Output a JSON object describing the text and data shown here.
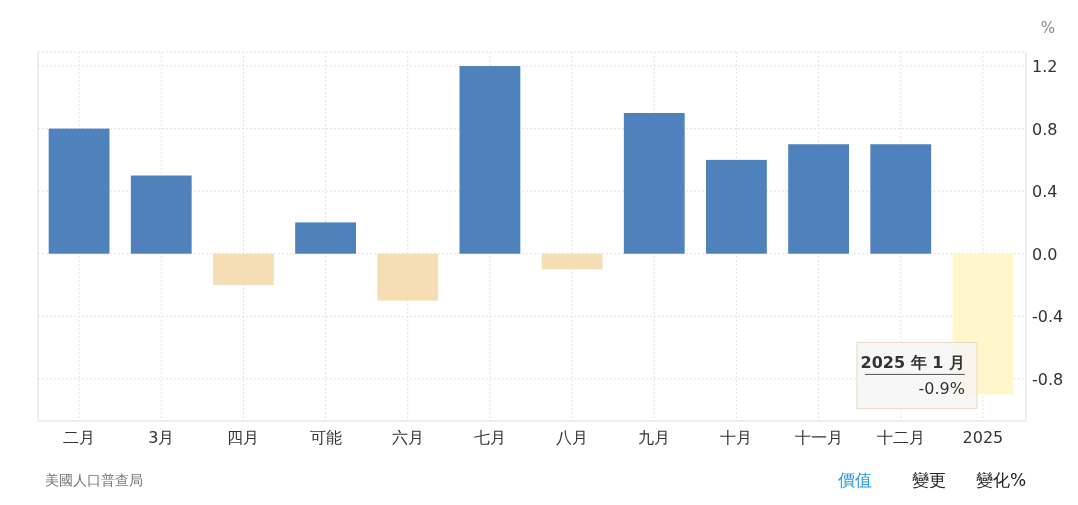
{
  "chart_data": {
    "type": "bar",
    "ylabel": "%",
    "categories": [
      "二月",
      "3月",
      "四月",
      "可能",
      "六月",
      "七月",
      "八月",
      "九月",
      "十月",
      "十一月",
      "十二月",
      "2025"
    ],
    "values": [
      0.8,
      0.5,
      -0.2,
      0.2,
      -0.3,
      1.2,
      -0.1,
      0.9,
      0.6,
      0.7,
      0.7,
      -0.9
    ],
    "colors": [
      "#4f81bd",
      "#4f81bd",
      "#f5deb3",
      "#4f81bd",
      "#f5deb3",
      "#4f81bd",
      "#f5deb3",
      "#4f81bd",
      "#4f81bd",
      "#4f81bd",
      "#4f81bd",
      "#fff6cc"
    ],
    "ylim": [
      -1.07,
      1.29
    ],
    "yticks": [
      -0.8,
      -0.4,
      {
        "value": 0,
        "label": "0.0"
      },
      0.4,
      0.8,
      1.2
    ],
    "grid": true,
    "annotations": [
      {
        "text": "2025 年 1 月",
        "x": "2025",
        "y": -0.9
      },
      {
        "text": "-0.9%",
        "x": "2025",
        "y": -0.9
      },
      "美國人口普查局",
      "價值",
      "變更",
      "變化%"
    ]
  }
}
